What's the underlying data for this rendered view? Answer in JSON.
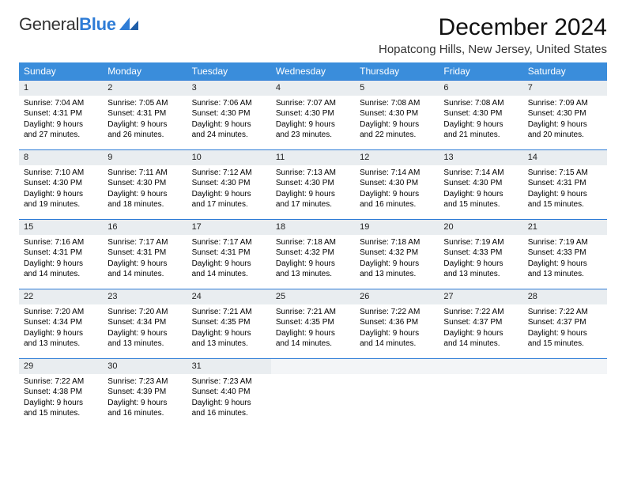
{
  "logo": {
    "word1": "General",
    "word2": "Blue"
  },
  "title": "December 2024",
  "subtitle": "Hopatcong Hills, New Jersey, United States",
  "colors": {
    "header_bg": "#3a8ddb",
    "header_text": "#ffffff",
    "daynum_bg": "#e9edf0",
    "daynum_border": "#2e7cd6",
    "body_text": "#000000",
    "page_bg": "#ffffff"
  },
  "fontsize": {
    "title": 30,
    "subtitle": 15,
    "dayheader": 12,
    "daynum": 11,
    "body": 10
  },
  "day_headers": [
    "Sunday",
    "Monday",
    "Tuesday",
    "Wednesday",
    "Thursday",
    "Friday",
    "Saturday"
  ],
  "grid": {
    "rows": 5,
    "cols": 7
  },
  "weeks": [
    [
      {
        "n": "1",
        "sr": "7:04 AM",
        "ss": "4:31 PM",
        "dl": "9 hours and 27 minutes."
      },
      {
        "n": "2",
        "sr": "7:05 AM",
        "ss": "4:31 PM",
        "dl": "9 hours and 26 minutes."
      },
      {
        "n": "3",
        "sr": "7:06 AM",
        "ss": "4:30 PM",
        "dl": "9 hours and 24 minutes."
      },
      {
        "n": "4",
        "sr": "7:07 AM",
        "ss": "4:30 PM",
        "dl": "9 hours and 23 minutes."
      },
      {
        "n": "5",
        "sr": "7:08 AM",
        "ss": "4:30 PM",
        "dl": "9 hours and 22 minutes."
      },
      {
        "n": "6",
        "sr": "7:08 AM",
        "ss": "4:30 PM",
        "dl": "9 hours and 21 minutes."
      },
      {
        "n": "7",
        "sr": "7:09 AM",
        "ss": "4:30 PM",
        "dl": "9 hours and 20 minutes."
      }
    ],
    [
      {
        "n": "8",
        "sr": "7:10 AM",
        "ss": "4:30 PM",
        "dl": "9 hours and 19 minutes."
      },
      {
        "n": "9",
        "sr": "7:11 AM",
        "ss": "4:30 PM",
        "dl": "9 hours and 18 minutes."
      },
      {
        "n": "10",
        "sr": "7:12 AM",
        "ss": "4:30 PM",
        "dl": "9 hours and 17 minutes."
      },
      {
        "n": "11",
        "sr": "7:13 AM",
        "ss": "4:30 PM",
        "dl": "9 hours and 17 minutes."
      },
      {
        "n": "12",
        "sr": "7:14 AM",
        "ss": "4:30 PM",
        "dl": "9 hours and 16 minutes."
      },
      {
        "n": "13",
        "sr": "7:14 AM",
        "ss": "4:30 PM",
        "dl": "9 hours and 15 minutes."
      },
      {
        "n": "14",
        "sr": "7:15 AM",
        "ss": "4:31 PM",
        "dl": "9 hours and 15 minutes."
      }
    ],
    [
      {
        "n": "15",
        "sr": "7:16 AM",
        "ss": "4:31 PM",
        "dl": "9 hours and 14 minutes."
      },
      {
        "n": "16",
        "sr": "7:17 AM",
        "ss": "4:31 PM",
        "dl": "9 hours and 14 minutes."
      },
      {
        "n": "17",
        "sr": "7:17 AM",
        "ss": "4:31 PM",
        "dl": "9 hours and 14 minutes."
      },
      {
        "n": "18",
        "sr": "7:18 AM",
        "ss": "4:32 PM",
        "dl": "9 hours and 13 minutes."
      },
      {
        "n": "19",
        "sr": "7:18 AM",
        "ss": "4:32 PM",
        "dl": "9 hours and 13 minutes."
      },
      {
        "n": "20",
        "sr": "7:19 AM",
        "ss": "4:33 PM",
        "dl": "9 hours and 13 minutes."
      },
      {
        "n": "21",
        "sr": "7:19 AM",
        "ss": "4:33 PM",
        "dl": "9 hours and 13 minutes."
      }
    ],
    [
      {
        "n": "22",
        "sr": "7:20 AM",
        "ss": "4:34 PM",
        "dl": "9 hours and 13 minutes."
      },
      {
        "n": "23",
        "sr": "7:20 AM",
        "ss": "4:34 PM",
        "dl": "9 hours and 13 minutes."
      },
      {
        "n": "24",
        "sr": "7:21 AM",
        "ss": "4:35 PM",
        "dl": "9 hours and 13 minutes."
      },
      {
        "n": "25",
        "sr": "7:21 AM",
        "ss": "4:35 PM",
        "dl": "9 hours and 14 minutes."
      },
      {
        "n": "26",
        "sr": "7:22 AM",
        "ss": "4:36 PM",
        "dl": "9 hours and 14 minutes."
      },
      {
        "n": "27",
        "sr": "7:22 AM",
        "ss": "4:37 PM",
        "dl": "9 hours and 14 minutes."
      },
      {
        "n": "28",
        "sr": "7:22 AM",
        "ss": "4:37 PM",
        "dl": "9 hours and 15 minutes."
      }
    ],
    [
      {
        "n": "29",
        "sr": "7:22 AM",
        "ss": "4:38 PM",
        "dl": "9 hours and 15 minutes."
      },
      {
        "n": "30",
        "sr": "7:23 AM",
        "ss": "4:39 PM",
        "dl": "9 hours and 16 minutes."
      },
      {
        "n": "31",
        "sr": "7:23 AM",
        "ss": "4:40 PM",
        "dl": "9 hours and 16 minutes."
      },
      null,
      null,
      null,
      null
    ]
  ],
  "labels": {
    "sunrise": "Sunrise:",
    "sunset": "Sunset:",
    "daylight": "Daylight:"
  }
}
